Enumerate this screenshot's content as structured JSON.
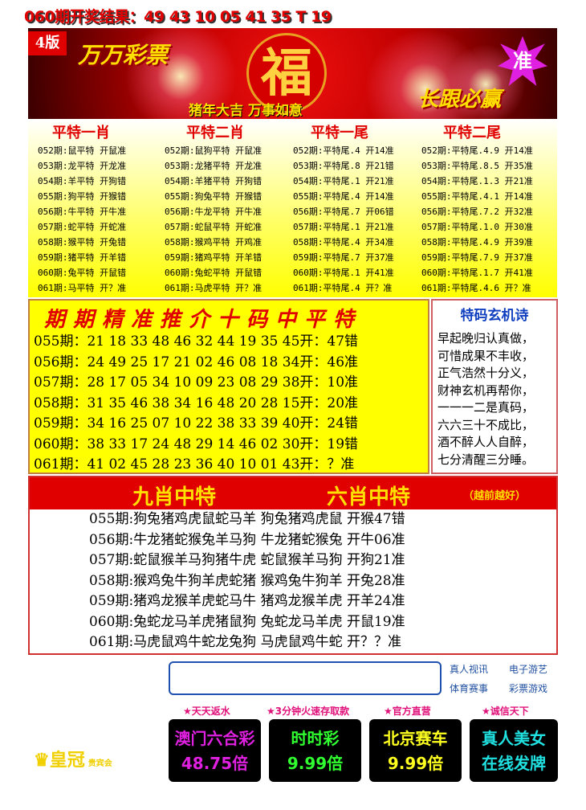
{
  "title": "060期开奖结果：49 43 10 05 41 35 T 19",
  "banner": {
    "version": "4版",
    "brand": "万万彩票",
    "fu": "福",
    "slogan": "猪年大吉 万事如意",
    "badge": "准",
    "motto": "长跟必赢"
  },
  "top_table": {
    "columns": [
      {
        "header": "平特一肖",
        "rows": [
          "052期:鼠平特 开鼠准",
          "053期:龙平特 开龙准",
          "054期:羊平特 开狗错",
          "055期:狗平特 开猴错",
          "056期:牛平特 开牛准",
          "057期:蛇平特 开蛇准",
          "058期:猴平特 开兔错",
          "059期:猪平特 开羊错",
          "060期:兔平特 开鼠错",
          "061期:马平特 开？准"
        ]
      },
      {
        "header": "平特二肖",
        "rows": [
          "052期:鼠狗平特 开鼠准",
          "053期:龙猪平特 开龙准",
          "054期:羊猪平特 开狗错",
          "055期:狗兔平特 开猴错",
          "056期:牛龙平特 开牛准",
          "057期:蛇鼠平特 开蛇准",
          "058期:猴鸡平特 开鸡准",
          "059期:猪鸡平特 开羊错",
          "060期:兔蛇平特 开鼠错",
          "061期:马虎平特 开？准"
        ]
      },
      {
        "header": "平特一尾",
        "rows": [
          "052期:平特尾.4 开14准",
          "053期:平特尾.8 开21错",
          "054期:平特尾.1 开21准",
          "055期:平特尾.4 开14准",
          "056期:平特尾.7 开06错",
          "057期:平特尾.1 开21准",
          "058期:平特尾.4 开34准",
          "059期:平特尾.7 开37准",
          "060期:平特尾.1 开41准",
          "061期:平特尾.4 开？准"
        ]
      },
      {
        "header": "平特二尾",
        "rows": [
          "052期:平特尾.4.9 开14准",
          "053期:平特尾.8.5 开35准",
          "054期:平特尾.1.3 开21准",
          "055期:平特尾.4.1 开14准",
          "056期:平特尾.7.2 开32准",
          "057期:平特尾.1.0 开30准",
          "058期:平特尾.4.9 开39准",
          "059期:平特尾.7.9 开37准",
          "060期:平特尾.1.7 开41准",
          "061期:平特尾.4.6 开？准"
        ]
      }
    ]
  },
  "ten_codes": {
    "title": "期期精准推介十码中平特",
    "rows": [
      "055期：21 18 33 48 46 32 44 19 35 45开：47错",
      "056期：24 49 25 17 21 02 46 08 18 34开：46准",
      "057期：28 17 05 34 10 09 23 08 29 38开：10准",
      "058期：31 35 46 38 34 16 48 20 28 15开：20准",
      "059期：34 16 25 07 10 22 38 33 39 40开：24错",
      "060期：38 33 17 24 48 29 14 46 02 30开：19错",
      "061期：41 02 45 28 23 36 40 10 01 43开：？准"
    ]
  },
  "poem": {
    "title": "特码玄机诗",
    "lines": [
      "早起晚归认真做，",
      "可惜成果不丰收，",
      "正气浩然十分义，",
      "财神玄机再帮你，",
      "一一一二是真码，",
      "六六三十不成比，",
      "酒不醉人人自醉，",
      "七分清醒三分睡。"
    ]
  },
  "zodiac": {
    "header_left": "九肖中特",
    "header_right": "六肖中特",
    "note": "（越前越好）",
    "rows": [
      "055期:狗兔猪鸡虎鼠蛇马羊 狗兔猪鸡虎鼠 开猴47错",
      "056期:牛龙猪蛇猴兔羊马狗 牛龙猪蛇猴兔 开牛06准",
      "057期:蛇鼠猴羊马狗猪牛虎 蛇鼠猴羊马狗 开狗21准",
      "058期:猴鸡兔牛狗羊虎蛇猪 猴鸡兔牛狗羊 开兔28准",
      "059期:猪鸡龙猴羊虎蛇马牛 猪鸡龙猴羊虎 开羊24准",
      "060期:兔蛇龙马羊虎猪鼠狗 兔蛇龙马羊虎 开鼠19准",
      "061期:马虎鼠鸡牛蛇龙兔狗 马虎鼠鸡牛蛇 开？？准"
    ]
  },
  "ads": {
    "links": [
      "真人视讯",
      "电子游艺",
      "体育赛事",
      "彩票游戏"
    ],
    "stars": [
      "★天天返水",
      "★3分钟火速存取款",
      "★官方直营",
      "★诚信天下"
    ],
    "buttons": [
      {
        "line1": "澳门六合彩",
        "line2": "48.75倍",
        "color": "#e020e0"
      },
      {
        "line1": "时时彩",
        "line2": "9.99倍",
        "color": "#30ff30"
      },
      {
        "line1": "北京赛车",
        "line2": "9.99倍",
        "color": "#ffff20"
      },
      {
        "line1": "真人美女",
        "line2": "在线发牌",
        "color": "#20e0e0"
      }
    ],
    "logo": "皇冠",
    "logo_sub": "贵宾会"
  }
}
